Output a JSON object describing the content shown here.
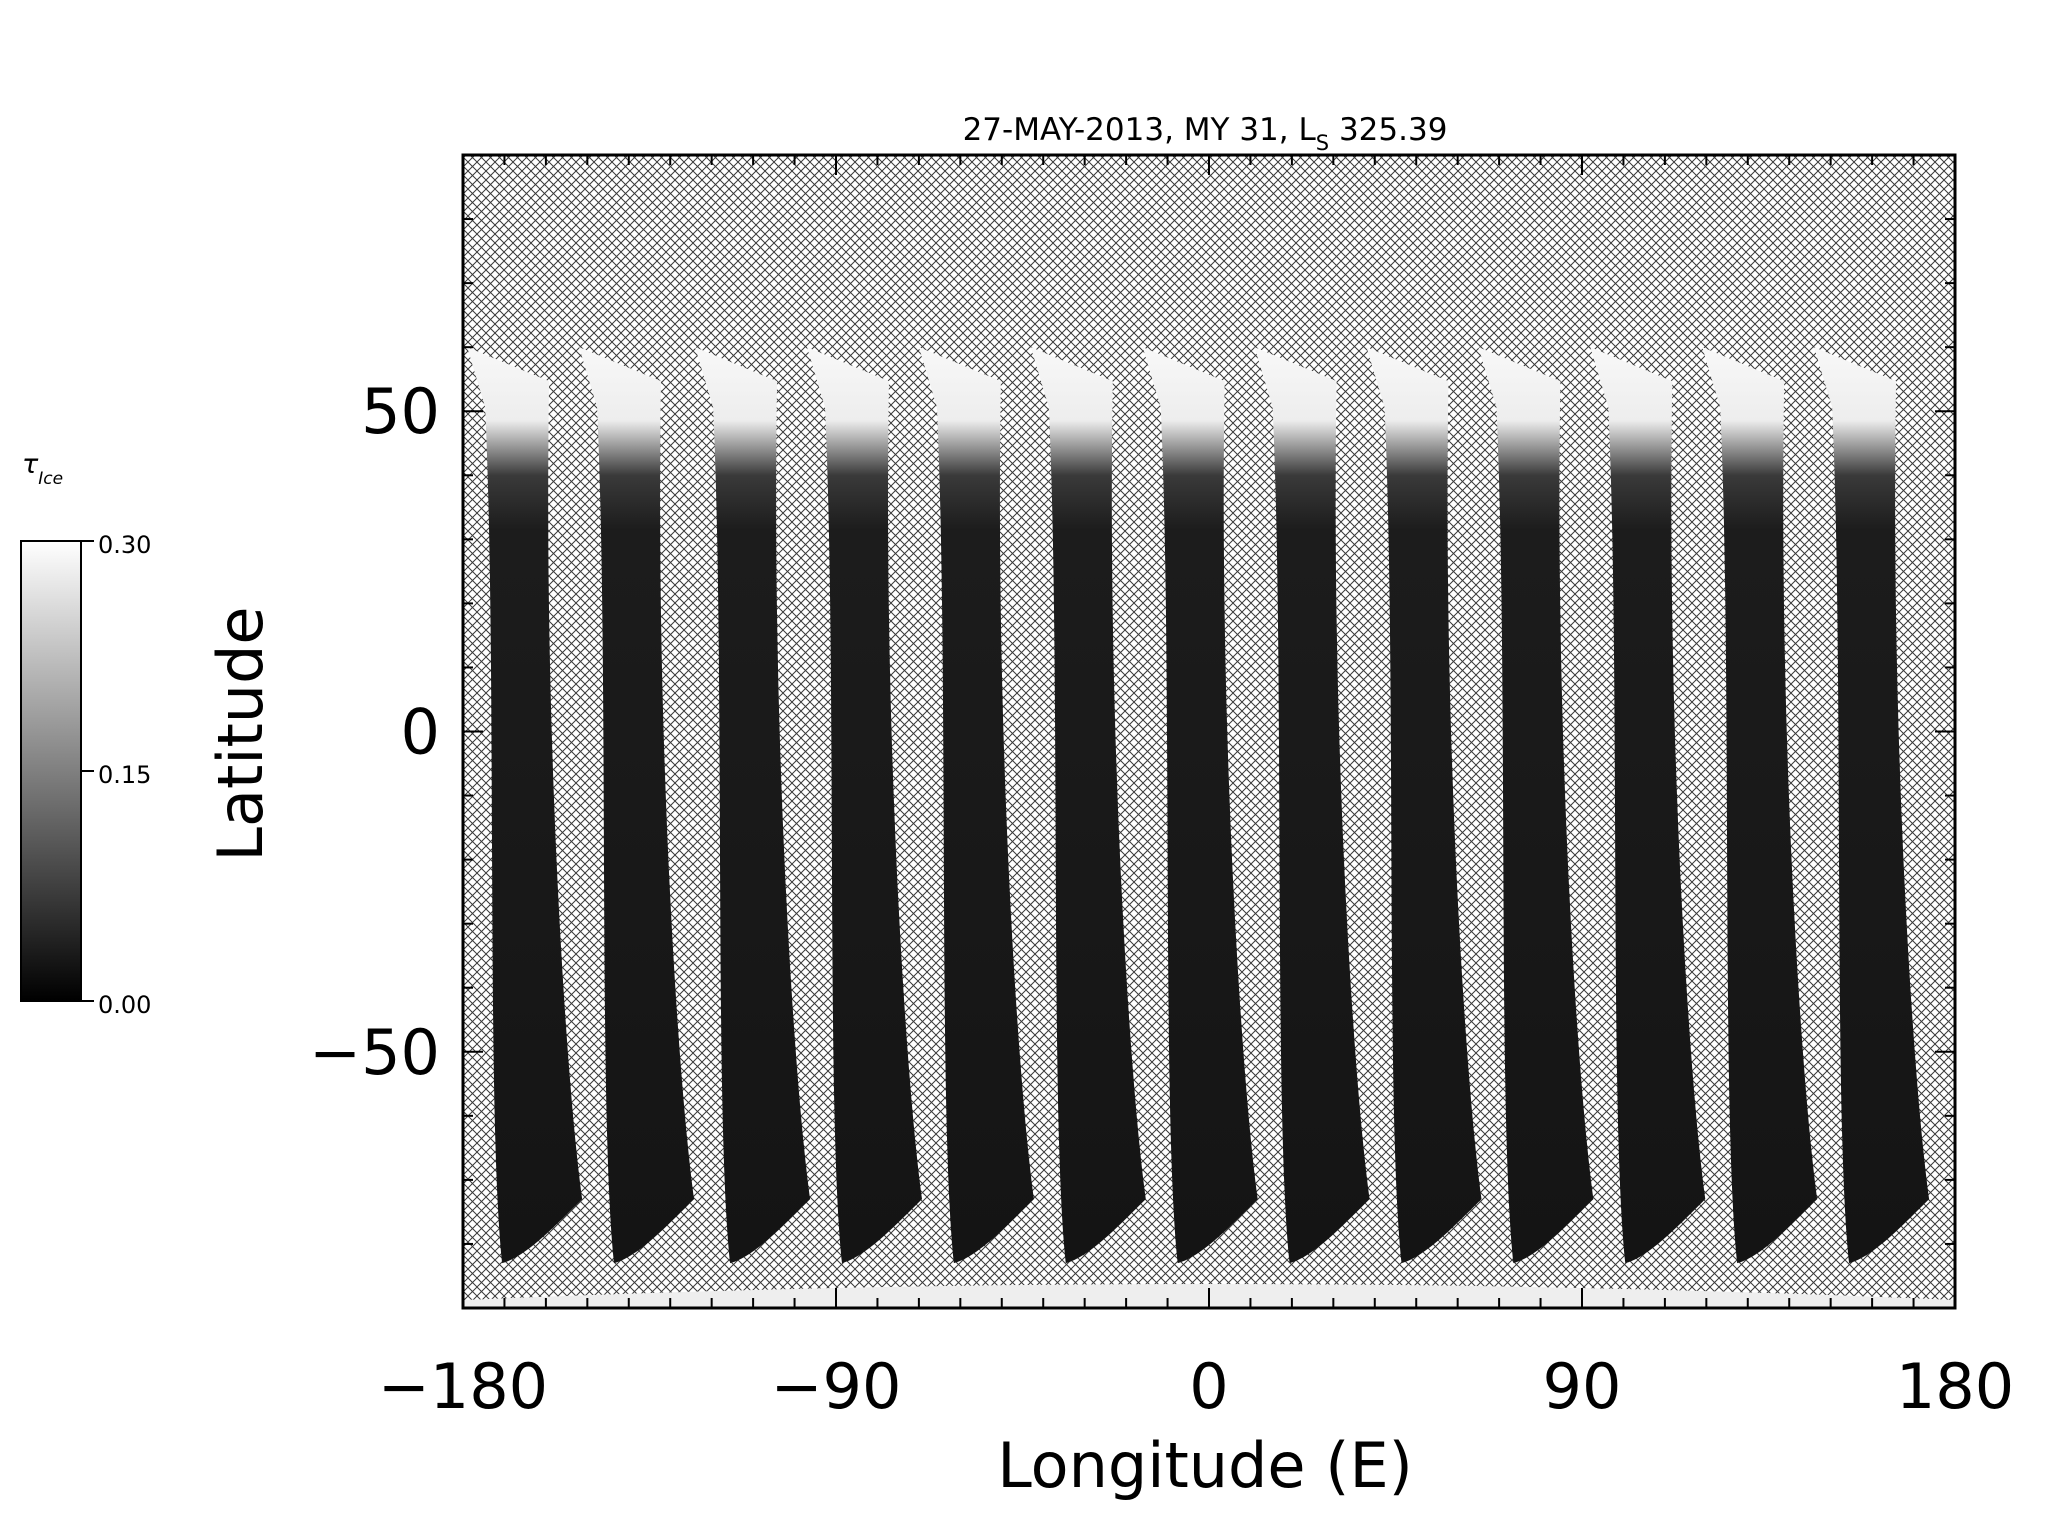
{
  "chart_data": {
    "type": "heatmap",
    "title_main": "27-MAY-2013, MY 31,  L",
    "title_sub": "S",
    "title_value": " 325.39",
    "xlabel": "Longitude (E)",
    "ylabel": "Latitude",
    "xlim": [
      -180,
      180
    ],
    "ylim": [
      -90,
      90
    ],
    "x_ticks": [
      -180,
      -90,
      0,
      90,
      180
    ],
    "x_tick_labels": [
      "−180",
      "−90",
      "0",
      "90",
      "180"
    ],
    "y_ticks": [
      -50,
      0,
      50
    ],
    "y_tick_labels": [
      "−50",
      "0",
      "50"
    ],
    "colorbar": {
      "label_symbol": "τ",
      "label_sub": "Ice",
      "range": [
        0.0,
        0.3
      ],
      "tick_labels": [
        "0.30",
        "0.15",
        "0.00"
      ],
      "colormap": "grayscale"
    },
    "swaths": [
      {
        "top_lon": -179,
        "bottom_lon": -172
      },
      {
        "top_lon": -152,
        "bottom_lon": -145
      },
      {
        "top_lon": -124,
        "bottom_lon": -117
      },
      {
        "top_lon": -97,
        "bottom_lon": -90
      },
      {
        "top_lon": -70,
        "bottom_lon": -63
      },
      {
        "top_lon": -43,
        "bottom_lon": -36
      },
      {
        "top_lon": -16,
        "bottom_lon": -9
      },
      {
        "top_lon": 11,
        "bottom_lon": 18
      },
      {
        "top_lon": 38,
        "bottom_lon": 45
      },
      {
        "top_lon": 65,
        "bottom_lon": 72
      },
      {
        "top_lon": 92,
        "bottom_lon": 99
      },
      {
        "top_lon": 119,
        "bottom_lon": 126
      },
      {
        "top_lon": 146,
        "bottom_lon": 153
      }
    ],
    "missing_data_pattern": "crosshatch",
    "grid": false
  }
}
